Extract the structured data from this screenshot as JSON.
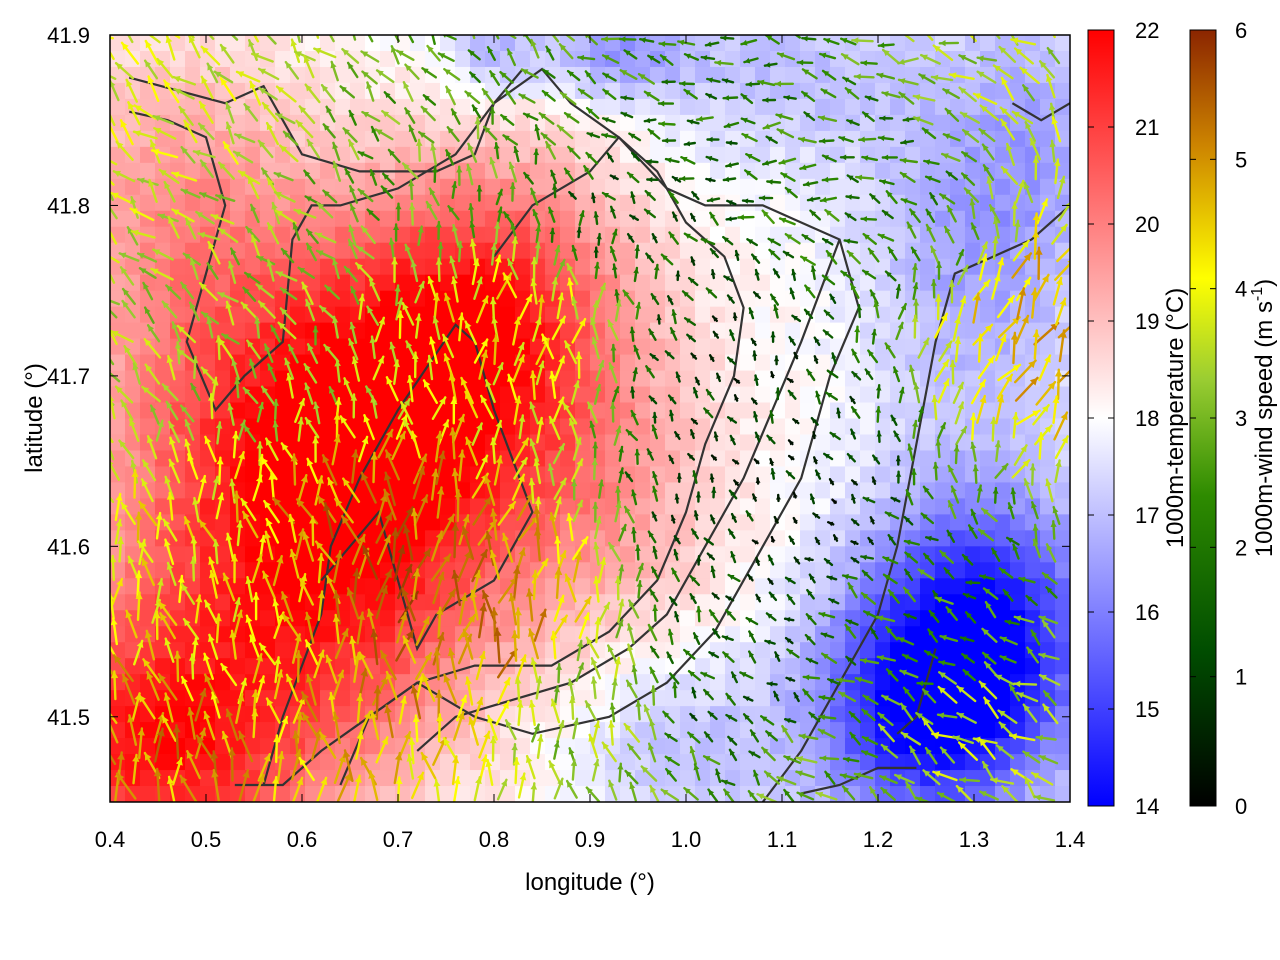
{
  "chart_data": {
    "type": "heatmap",
    "title": "",
    "xlabel": "longitude (°)",
    "ylabel": "latitude (°)",
    "xlim": [
      0.4,
      1.4
    ],
    "ylim": [
      41.45,
      41.9
    ],
    "x_ticks": [
      0.4,
      0.5,
      0.6,
      0.7,
      0.8,
      0.9,
      1.0,
      1.1,
      1.2,
      1.3,
      1.4
    ],
    "x_tick_labels": [
      "0.4",
      "0.5",
      "0.6",
      "0.7",
      "0.8",
      "0.9",
      "1.0",
      "1.1",
      "1.2",
      "1.3",
      "1.4"
    ],
    "y_ticks": [
      41.5,
      41.6,
      41.7,
      41.8,
      41.9
    ],
    "y_tick_labels": [
      "41.5",
      "41.6",
      "41.7",
      "41.8",
      "41.9"
    ],
    "temperature_colorbar": {
      "label": "1000m-temperature (°C)",
      "range": [
        14,
        22
      ],
      "ticks": [
        14,
        15,
        16,
        17,
        18,
        19,
        20,
        21,
        22
      ],
      "tick_labels": [
        "14",
        "15",
        "16",
        "17",
        "18",
        "19",
        "20",
        "21",
        "22"
      ],
      "colors": [
        "#0000ff",
        "#ffffff",
        "#ff0000"
      ]
    },
    "wind_colorbar": {
      "label_main": "1000m-wind speed (m s",
      "label_sup": "-1",
      "label_end": ")",
      "range": [
        0,
        6
      ],
      "ticks": [
        0,
        1,
        2,
        3,
        4,
        5,
        6
      ],
      "tick_labels": [
        "0",
        "1",
        "2",
        "3",
        "4",
        "5",
        "6"
      ],
      "colors": [
        "#000000",
        "#006400",
        "#9acd32",
        "#ffff00",
        "#cd8500",
        "#8b2500"
      ]
    },
    "temperature_anomalies": [
      {
        "lon": 0.45,
        "lat": 41.48,
        "amp": 3.5,
        "sx": 0.12,
        "sy": 0.06
      },
      {
        "lon": 0.55,
        "lat": 41.63,
        "amp": 2.5,
        "sx": 0.12,
        "sy": 0.08
      },
      {
        "lon": 0.72,
        "lat": 41.7,
        "amp": 2.5,
        "sx": 0.14,
        "sy": 0.07
      },
      {
        "lon": 0.8,
        "lat": 41.75,
        "amp": 2.0,
        "sx": 0.1,
        "sy": 0.06
      },
      {
        "lon": 0.68,
        "lat": 41.58,
        "amp": 2.0,
        "sx": 0.1,
        "sy": 0.08
      },
      {
        "lon": 0.47,
        "lat": 41.8,
        "amp": 1.5,
        "sx": 0.1,
        "sy": 0.07
      },
      {
        "lon": 0.9,
        "lat": 41.62,
        "amp": 1.2,
        "sx": 0.1,
        "sy": 0.06
      },
      {
        "lon": 1.31,
        "lat": 41.55,
        "amp": -3.5,
        "sx": 0.09,
        "sy": 0.06
      },
      {
        "lon": 1.24,
        "lat": 41.5,
        "amp": -2.8,
        "sx": 0.08,
        "sy": 0.05
      },
      {
        "lon": 1.3,
        "lat": 41.78,
        "amp": -1.5,
        "sx": 0.08,
        "sy": 0.08
      },
      {
        "lon": 1.1,
        "lat": 41.88,
        "amp": -1.0,
        "sx": 0.1,
        "sy": 0.04
      },
      {
        "lon": 0.93,
        "lat": 41.89,
        "amp": -1.5,
        "sx": 0.05,
        "sy": 0.02
      },
      {
        "lon": 0.8,
        "lat": 41.89,
        "amp": -1.2,
        "sx": 0.04,
        "sy": 0.02
      },
      {
        "lon": 1.0,
        "lat": 41.48,
        "amp": -1.0,
        "sx": 0.08,
        "sy": 0.04
      },
      {
        "lon": 1.38,
        "lat": 41.85,
        "amp": -0.8,
        "sx": 0.05,
        "sy": 0.06
      }
    ],
    "temperature_base": 18.0,
    "wind_speed_regimes": [
      {
        "lon": 0.45,
        "lat": 41.87,
        "speed": 3.5
      },
      {
        "lon": 0.55,
        "lat": 41.72,
        "speed": 3.0
      },
      {
        "lon": 0.5,
        "lat": 41.55,
        "speed": 4.0
      },
      {
        "lon": 0.44,
        "lat": 41.48,
        "speed": 4.8
      },
      {
        "lon": 0.7,
        "lat": 41.58,
        "speed": 5.2
      },
      {
        "lon": 0.78,
        "lat": 41.55,
        "speed": 5.0
      },
      {
        "lon": 0.82,
        "lat": 41.72,
        "speed": 4.0
      },
      {
        "lon": 0.75,
        "lat": 41.82,
        "speed": 2.5
      },
      {
        "lon": 0.85,
        "lat": 41.85,
        "speed": 2.2
      },
      {
        "lon": 0.95,
        "lat": 41.8,
        "speed": 1.2
      },
      {
        "lon": 1.05,
        "lat": 41.7,
        "speed": 0.8
      },
      {
        "lon": 1.1,
        "lat": 41.62,
        "speed": 0.6
      },
      {
        "lon": 1.05,
        "lat": 41.52,
        "speed": 1.2
      },
      {
        "lon": 1.2,
        "lat": 41.8,
        "speed": 1.8
      },
      {
        "lon": 1.25,
        "lat": 41.55,
        "speed": 2.0
      },
      {
        "lon": 1.3,
        "lat": 41.48,
        "speed": 3.2
      },
      {
        "lon": 1.38,
        "lat": 41.72,
        "speed": 4.5
      },
      {
        "lon": 1.38,
        "lat": 41.86,
        "speed": 3.2
      },
      {
        "lon": 0.9,
        "lat": 41.5,
        "speed": 3.0
      },
      {
        "lon": 1.15,
        "lat": 41.45,
        "speed": 2.5
      }
    ],
    "wind_direction_deg": [
      {
        "lon": 0.5,
        "lat": 41.8,
        "dir": 135
      },
      {
        "lon": 0.6,
        "lat": 41.6,
        "dir": 100
      },
      {
        "lon": 0.75,
        "lat": 41.6,
        "dir": 80
      },
      {
        "lon": 0.85,
        "lat": 41.72,
        "dir": 90
      },
      {
        "lon": 1.05,
        "lat": 41.7,
        "dir": 120
      },
      {
        "lon": 1.25,
        "lat": 41.55,
        "dir": 150
      },
      {
        "lon": 1.38,
        "lat": 41.7,
        "dir": 60
      },
      {
        "lon": 1.1,
        "lat": 41.85,
        "dir": 170
      }
    ],
    "contours": [
      [
        [
          0.42,
          41.875
        ],
        [
          0.52,
          41.86
        ],
        [
          0.56,
          41.87
        ],
        [
          0.6,
          41.83
        ],
        [
          0.66,
          41.82
        ],
        [
          0.74,
          41.82
        ],
        [
          0.78,
          41.83
        ],
        [
          0.8,
          41.86
        ],
        [
          0.83,
          41.88
        ]
      ],
      [
        [
          0.42,
          41.855
        ],
        [
          0.46,
          41.85
        ],
        [
          0.5,
          41.84
        ],
        [
          0.52,
          41.8
        ],
        [
          0.5,
          41.76
        ],
        [
          0.48,
          41.72
        ],
        [
          0.51,
          41.68
        ],
        [
          0.54,
          41.7
        ],
        [
          0.58,
          41.72
        ],
        [
          0.59,
          41.78
        ],
        [
          0.61,
          41.8
        ],
        [
          0.64,
          41.8
        ],
        [
          0.7,
          41.81
        ],
        [
          0.76,
          41.83
        ],
        [
          0.8,
          41.86
        ],
        [
          0.85,
          41.88
        ],
        [
          0.88,
          41.86
        ],
        [
          0.93,
          41.84
        ],
        [
          0.98,
          41.81
        ],
        [
          1.02,
          41.8
        ],
        [
          1.08,
          41.8
        ],
        [
          1.12,
          41.79
        ],
        [
          1.16,
          41.78
        ],
        [
          1.18,
          41.74
        ],
        [
          1.15,
          41.7
        ],
        [
          1.12,
          41.64
        ],
        [
          1.08,
          41.6
        ],
        [
          1.03,
          41.55
        ],
        [
          0.98,
          41.52
        ],
        [
          0.92,
          41.5
        ],
        [
          0.84,
          41.49
        ],
        [
          0.78,
          41.5
        ],
        [
          0.72,
          41.52
        ],
        [
          0.67,
          41.5
        ],
        [
          0.62,
          41.48
        ],
        [
          0.58,
          41.46
        ],
        [
          0.53,
          41.46
        ]
      ],
      [
        [
          0.56,
          41.46
        ],
        [
          0.58,
          41.5
        ],
        [
          0.62,
          41.56
        ],
        [
          0.63,
          41.6
        ],
        [
          0.66,
          41.64
        ],
        [
          0.7,
          41.68
        ],
        [
          0.76,
          41.73
        ],
        [
          0.78,
          41.72
        ],
        [
          0.8,
          41.68
        ],
        [
          0.84,
          41.62
        ],
        [
          0.8,
          41.58
        ],
        [
          0.74,
          41.56
        ],
        [
          0.72,
          41.54
        ],
        [
          0.7,
          41.58
        ],
        [
          0.68,
          41.62
        ],
        [
          0.65,
          41.6
        ],
        [
          0.62,
          41.58
        ]
      ],
      [
        [
          0.64,
          41.46
        ],
        [
          0.67,
          41.5
        ],
        [
          0.72,
          41.52
        ],
        [
          0.78,
          41.53
        ],
        [
          0.86,
          41.53
        ],
        [
          0.92,
          41.55
        ],
        [
          0.97,
          41.58
        ],
        [
          1.0,
          41.62
        ],
        [
          1.02,
          41.66
        ],
        [
          1.05,
          41.7
        ],
        [
          1.06,
          41.74
        ],
        [
          1.04,
          41.77
        ],
        [
          1.0,
          41.79
        ],
        [
          0.97,
          41.82
        ],
        [
          0.93,
          41.84
        ],
        [
          0.9,
          41.82
        ],
        [
          0.84,
          41.8
        ],
        [
          0.8,
          41.77
        ]
      ],
      [
        [
          0.72,
          41.48
        ],
        [
          0.76,
          41.5
        ],
        [
          0.82,
          41.51
        ],
        [
          0.88,
          41.52
        ],
        [
          0.94,
          41.54
        ],
        [
          0.98,
          41.56
        ],
        [
          1.02,
          41.6
        ],
        [
          1.06,
          41.64
        ],
        [
          1.09,
          41.68
        ],
        [
          1.12,
          41.72
        ],
        [
          1.14,
          41.75
        ],
        [
          1.16,
          41.78
        ]
      ],
      [
        [
          1.08,
          41.45
        ],
        [
          1.12,
          41.48
        ],
        [
          1.16,
          41.52
        ],
        [
          1.2,
          41.56
        ],
        [
          1.22,
          41.6
        ],
        [
          1.24,
          41.66
        ],
        [
          1.26,
          41.72
        ],
        [
          1.28,
          41.76
        ],
        [
          1.32,
          41.77
        ],
        [
          1.36,
          41.78
        ],
        [
          1.4,
          41.8
        ]
      ],
      [
        [
          1.12,
          41.455
        ],
        [
          1.16,
          41.46
        ],
        [
          1.2,
          41.47
        ],
        [
          1.24,
          41.47
        ]
      ],
      [
        [
          1.22,
          41.49
        ],
        [
          1.24,
          41.5
        ],
        [
          1.25,
          41.52
        ],
        [
          1.26,
          41.54
        ]
      ],
      [
        [
          1.34,
          41.86
        ],
        [
          1.37,
          41.85
        ],
        [
          1.4,
          41.86
        ]
      ]
    ],
    "contour_color": "#333333"
  }
}
